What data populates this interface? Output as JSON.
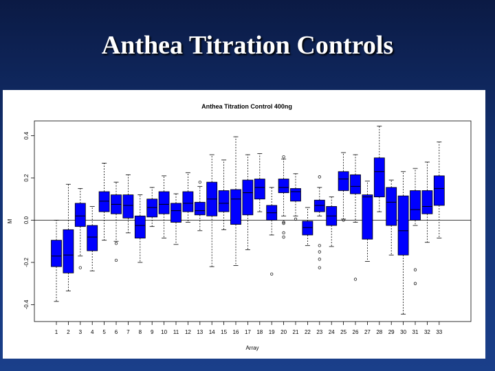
{
  "slide": {
    "title": "Anthea Titration Controls"
  },
  "colors": {
    "box_fill": "#0000ff",
    "background_top": "#0b1a44",
    "background_bottom": "#1a3f8a"
  },
  "chart_data": {
    "type": "boxplot",
    "title": "Anthea Titration Control 400ng",
    "xlabel": "Array",
    "ylabel": "M",
    "ylim": [
      -0.48,
      0.47
    ],
    "yticks": [
      -0.4,
      -0.2,
      0.0,
      0.2,
      0.4
    ],
    "ytick_labels": [
      "-0.4",
      "-0.2",
      "0.0",
      "0.2",
      "0.4"
    ],
    "reference_line": 0,
    "grid": false,
    "categories": [
      "1",
      "2",
      "3",
      "4",
      "5",
      "6",
      "7",
      "8",
      "9",
      "10",
      "11",
      "12",
      "13",
      "14",
      "15",
      "16",
      "17",
      "18",
      "19",
      "20",
      "21",
      "22",
      "23",
      "24",
      "25",
      "26",
      "27",
      "28",
      "29",
      "30",
      "31",
      "32",
      "33"
    ],
    "boxes": [
      {
        "array": "1",
        "lower_whisker": -0.385,
        "q1": -0.22,
        "median": -0.17,
        "q3": -0.095,
        "upper_whisker": 0.0,
        "outliers": []
      },
      {
        "array": "2",
        "lower_whisker": -0.335,
        "q1": -0.25,
        "median": -0.165,
        "q3": -0.045,
        "upper_whisker": 0.17,
        "outliers": []
      },
      {
        "array": "3",
        "lower_whisker": -0.17,
        "q1": -0.03,
        "median": 0.02,
        "q3": 0.08,
        "upper_whisker": 0.15,
        "outliers": [
          -0.225
        ]
      },
      {
        "array": "4",
        "lower_whisker": -0.24,
        "q1": -0.145,
        "median": -0.08,
        "q3": -0.025,
        "upper_whisker": 0.065,
        "outliers": []
      },
      {
        "array": "5",
        "lower_whisker": -0.095,
        "q1": 0.04,
        "median": 0.09,
        "q3": 0.135,
        "upper_whisker": 0.27,
        "outliers": []
      },
      {
        "array": "6",
        "lower_whisker": -0.1,
        "q1": 0.03,
        "median": 0.075,
        "q3": 0.12,
        "upper_whisker": 0.18,
        "outliers": [
          -0.11,
          -0.19
        ]
      },
      {
        "array": "7",
        "lower_whisker": -0.06,
        "q1": 0.01,
        "median": 0.07,
        "q3": 0.12,
        "upper_whisker": 0.215,
        "outliers": []
      },
      {
        "array": "8",
        "lower_whisker": -0.2,
        "q1": -0.085,
        "median": -0.025,
        "q3": 0.02,
        "upper_whisker": 0.12,
        "outliers": []
      },
      {
        "array": "9",
        "lower_whisker": -0.03,
        "q1": 0.015,
        "median": 0.06,
        "q3": 0.1,
        "upper_whisker": 0.155,
        "outliers": []
      },
      {
        "array": "10",
        "lower_whisker": -0.085,
        "q1": 0.03,
        "median": 0.075,
        "q3": 0.135,
        "upper_whisker": 0.21,
        "outliers": []
      },
      {
        "array": "11",
        "lower_whisker": -0.115,
        "q1": -0.01,
        "median": 0.045,
        "q3": 0.08,
        "upper_whisker": 0.125,
        "outliers": []
      },
      {
        "array": "12",
        "lower_whisker": -0.01,
        "q1": 0.04,
        "median": 0.08,
        "q3": 0.135,
        "upper_whisker": 0.225,
        "outliers": []
      },
      {
        "array": "13",
        "lower_whisker": -0.05,
        "q1": 0.025,
        "median": 0.045,
        "q3": 0.085,
        "upper_whisker": 0.16,
        "outliers": [
          0.18
        ]
      },
      {
        "array": "14",
        "lower_whisker": -0.22,
        "q1": 0.02,
        "median": 0.1,
        "q3": 0.18,
        "upper_whisker": 0.31,
        "outliers": []
      },
      {
        "array": "15",
        "lower_whisker": -0.045,
        "q1": 0.04,
        "median": 0.08,
        "q3": 0.14,
        "upper_whisker": 0.285,
        "outliers": []
      },
      {
        "array": "16",
        "lower_whisker": -0.215,
        "q1": -0.02,
        "median": 0.1,
        "q3": 0.145,
        "upper_whisker": 0.395,
        "outliers": []
      },
      {
        "array": "17",
        "lower_whisker": -0.14,
        "q1": 0.025,
        "median": 0.13,
        "q3": 0.19,
        "upper_whisker": 0.31,
        "outliers": []
      },
      {
        "array": "18",
        "lower_whisker": 0.04,
        "q1": 0.1,
        "median": 0.155,
        "q3": 0.195,
        "upper_whisker": 0.315,
        "outliers": []
      },
      {
        "array": "19",
        "lower_whisker": -0.07,
        "q1": 0.0,
        "median": 0.035,
        "q3": 0.07,
        "upper_whisker": 0.155,
        "outliers": [
          -0.255
        ]
      },
      {
        "array": "20",
        "lower_whisker": 0.02,
        "q1": 0.13,
        "median": 0.155,
        "q3": 0.195,
        "upper_whisker": 0.29,
        "outliers": [
          0.3,
          -0.01,
          -0.015,
          -0.06,
          -0.08
        ]
      },
      {
        "array": "21",
        "lower_whisker": 0.02,
        "q1": 0.09,
        "median": 0.135,
        "q3": 0.15,
        "upper_whisker": 0.22,
        "outliers": [
          0.005
        ]
      },
      {
        "array": "22",
        "lower_whisker": -0.12,
        "q1": -0.07,
        "median": -0.035,
        "q3": -0.005,
        "upper_whisker": 0.06,
        "outliers": []
      },
      {
        "array": "23",
        "lower_whisker": 0.02,
        "q1": 0.04,
        "median": 0.07,
        "q3": 0.095,
        "upper_whisker": 0.155,
        "outliers": [
          0.205,
          -0.12,
          -0.15,
          -0.185,
          -0.225
        ]
      },
      {
        "array": "24",
        "lower_whisker": -0.125,
        "q1": -0.025,
        "median": 0.02,
        "q3": 0.065,
        "upper_whisker": 0.11,
        "outliers": []
      },
      {
        "array": "25",
        "lower_whisker": 0.005,
        "q1": 0.14,
        "median": 0.195,
        "q3": 0.23,
        "upper_whisker": 0.32,
        "outliers": [
          0.0
        ]
      },
      {
        "array": "26",
        "lower_whisker": -0.01,
        "q1": 0.125,
        "median": 0.16,
        "q3": 0.215,
        "upper_whisker": 0.31,
        "outliers": [
          -0.28
        ]
      },
      {
        "array": "27",
        "lower_whisker": -0.195,
        "q1": -0.09,
        "median": 0.11,
        "q3": 0.12,
        "upper_whisker": 0.185,
        "outliers": []
      },
      {
        "array": "28",
        "lower_whisker": 0.04,
        "q1": 0.11,
        "median": 0.23,
        "q3": 0.295,
        "upper_whisker": 0.445,
        "outliers": []
      },
      {
        "array": "29",
        "lower_whisker": -0.165,
        "q1": -0.025,
        "median": 0.085,
        "q3": 0.155,
        "upper_whisker": 0.19,
        "outliers": []
      },
      {
        "array": "30",
        "lower_whisker": -0.445,
        "q1": -0.165,
        "median": -0.05,
        "q3": 0.115,
        "upper_whisker": 0.23,
        "outliers": []
      },
      {
        "array": "31",
        "lower_whisker": -0.025,
        "q1": 0.0,
        "median": 0.05,
        "q3": 0.14,
        "upper_whisker": 0.245,
        "outliers": [
          -0.235,
          -0.3
        ]
      },
      {
        "array": "32",
        "lower_whisker": -0.105,
        "q1": 0.03,
        "median": 0.065,
        "q3": 0.14,
        "upper_whisker": 0.275,
        "outliers": []
      },
      {
        "array": "33",
        "lower_whisker": -0.085,
        "q1": 0.07,
        "median": 0.15,
        "q3": 0.21,
        "upper_whisker": 0.37,
        "outliers": []
      }
    ]
  }
}
